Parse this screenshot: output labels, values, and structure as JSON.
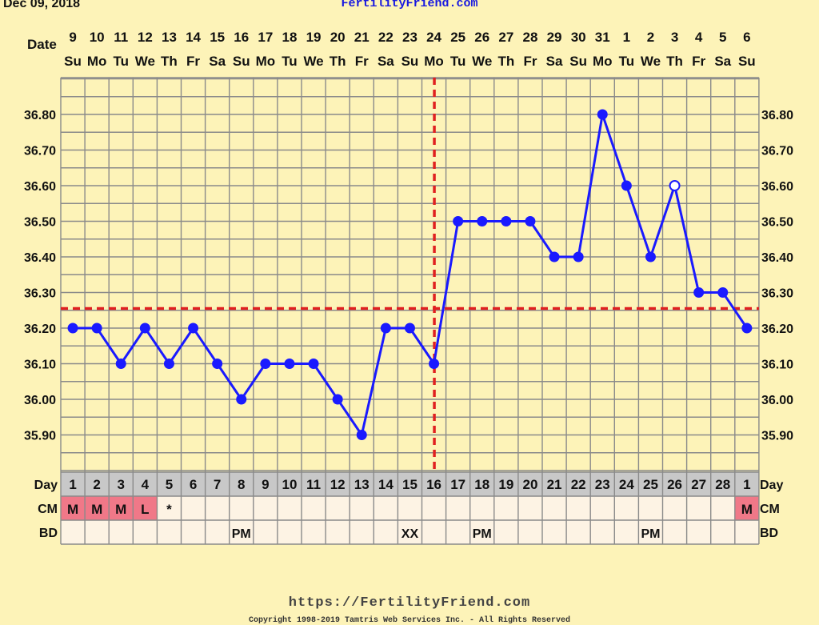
{
  "header": {
    "date_text": "Dec 09, 2018",
    "site_name": "FertilityFriend.com",
    "date_row_label": "Date"
  },
  "rows": {
    "day_label": "Day",
    "cm_label": "CM",
    "bd_label": "BD"
  },
  "footer": {
    "url": "https://FertilityFriend.com",
    "copyright": "Copyright 1998-2019 Tamtris Web Services Inc. - All Rights Reserved"
  },
  "colors": {
    "background": "#fdf3b8",
    "line": "#1a1aff",
    "grid": "#8a8a8a",
    "coverline": "#e02020",
    "day_row": "#c8c8c8",
    "cell_bg": "#fdf3e4",
    "cm_highlight": "#f07888"
  },
  "chart_data": {
    "type": "line",
    "dates": [
      "9",
      "10",
      "11",
      "12",
      "13",
      "14",
      "15",
      "16",
      "17",
      "18",
      "19",
      "20",
      "21",
      "22",
      "23",
      "24",
      "25",
      "26",
      "27",
      "28",
      "29",
      "30",
      "31",
      "1",
      "2",
      "3",
      "4",
      "5",
      "6"
    ],
    "weekdays": [
      "Su",
      "Mo",
      "Tu",
      "We",
      "Th",
      "Fr",
      "Sa",
      "Su",
      "Mo",
      "Tu",
      "We",
      "Th",
      "Fr",
      "Sa",
      "Su",
      "Mo",
      "Tu",
      "We",
      "Th",
      "Fr",
      "Sa",
      "Su",
      "Mo",
      "Tu",
      "We",
      "Th",
      "Fr",
      "Sa",
      "Su"
    ],
    "cycle_days": [
      "1",
      "2",
      "3",
      "4",
      "5",
      "6",
      "7",
      "8",
      "9",
      "10",
      "11",
      "12",
      "13",
      "14",
      "15",
      "16",
      "17",
      "18",
      "19",
      "20",
      "21",
      "22",
      "23",
      "24",
      "25",
      "26",
      "27",
      "28",
      "1"
    ],
    "series": [
      {
        "values": [
          36.2,
          36.2,
          36.1,
          36.2,
          36.1,
          36.2,
          36.1,
          36.0,
          36.1,
          36.1,
          36.1,
          36.0,
          35.9,
          36.2,
          36.2,
          36.1,
          36.5,
          36.5,
          36.5,
          36.5,
          36.4,
          36.4,
          36.8,
          36.6,
          36.4,
          36.6,
          36.3,
          36.3,
          36.2
        ],
        "open_points": [
          25
        ]
      }
    ],
    "y_ticks": [
      "35.90",
      "36.00",
      "36.10",
      "36.20",
      "36.30",
      "36.40",
      "36.50",
      "36.60",
      "36.70",
      "36.80"
    ],
    "ylim": [
      35.8,
      36.9
    ],
    "coverline": 36.255,
    "ovulation_after_index": 15,
    "cm": [
      "M",
      "M",
      "M",
      "L",
      "*",
      "",
      "",
      "",
      "",
      "",
      "",
      "",
      "",
      "",
      "",
      "",
      "",
      "",
      "",
      "",
      "",
      "",
      "",
      "",
      "",
      "",
      "",
      "",
      "M"
    ],
    "bd": [
      "",
      "",
      "",
      "",
      "",
      "",
      "",
      "PM",
      "",
      "",
      "",
      "",
      "",
      "",
      "XX",
      "",
      "",
      "PM",
      "",
      "",
      "",
      "",
      "",
      "",
      "PM",
      "",
      "",
      "",
      ""
    ],
    "grid": true
  }
}
